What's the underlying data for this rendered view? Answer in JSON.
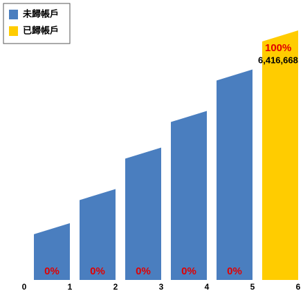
{
  "chart_data": {
    "type": "histogram",
    "bins": [
      0,
      1,
      2,
      3,
      4,
      5,
      6
    ],
    "xticks": [
      0,
      1,
      2,
      3,
      4,
      5,
      6
    ],
    "xlim": [
      0,
      6
    ],
    "ylim": [
      0,
      100
    ],
    "series": [
      {
        "name": "未歸帳戶",
        "color": "#4a7ebf",
        "values": [
          21,
          35,
          52,
          67,
          84,
          null
        ]
      },
      {
        "name": "已歸帳戶",
        "color": "#ffcc00",
        "values": [
          null,
          null,
          null,
          null,
          null,
          100
        ]
      }
    ],
    "data_labels": [
      "0%",
      "0%",
      "0%",
      "0%",
      "0%",
      "100%"
    ],
    "count_label": "6,416,668",
    "legend": "top-left"
  }
}
